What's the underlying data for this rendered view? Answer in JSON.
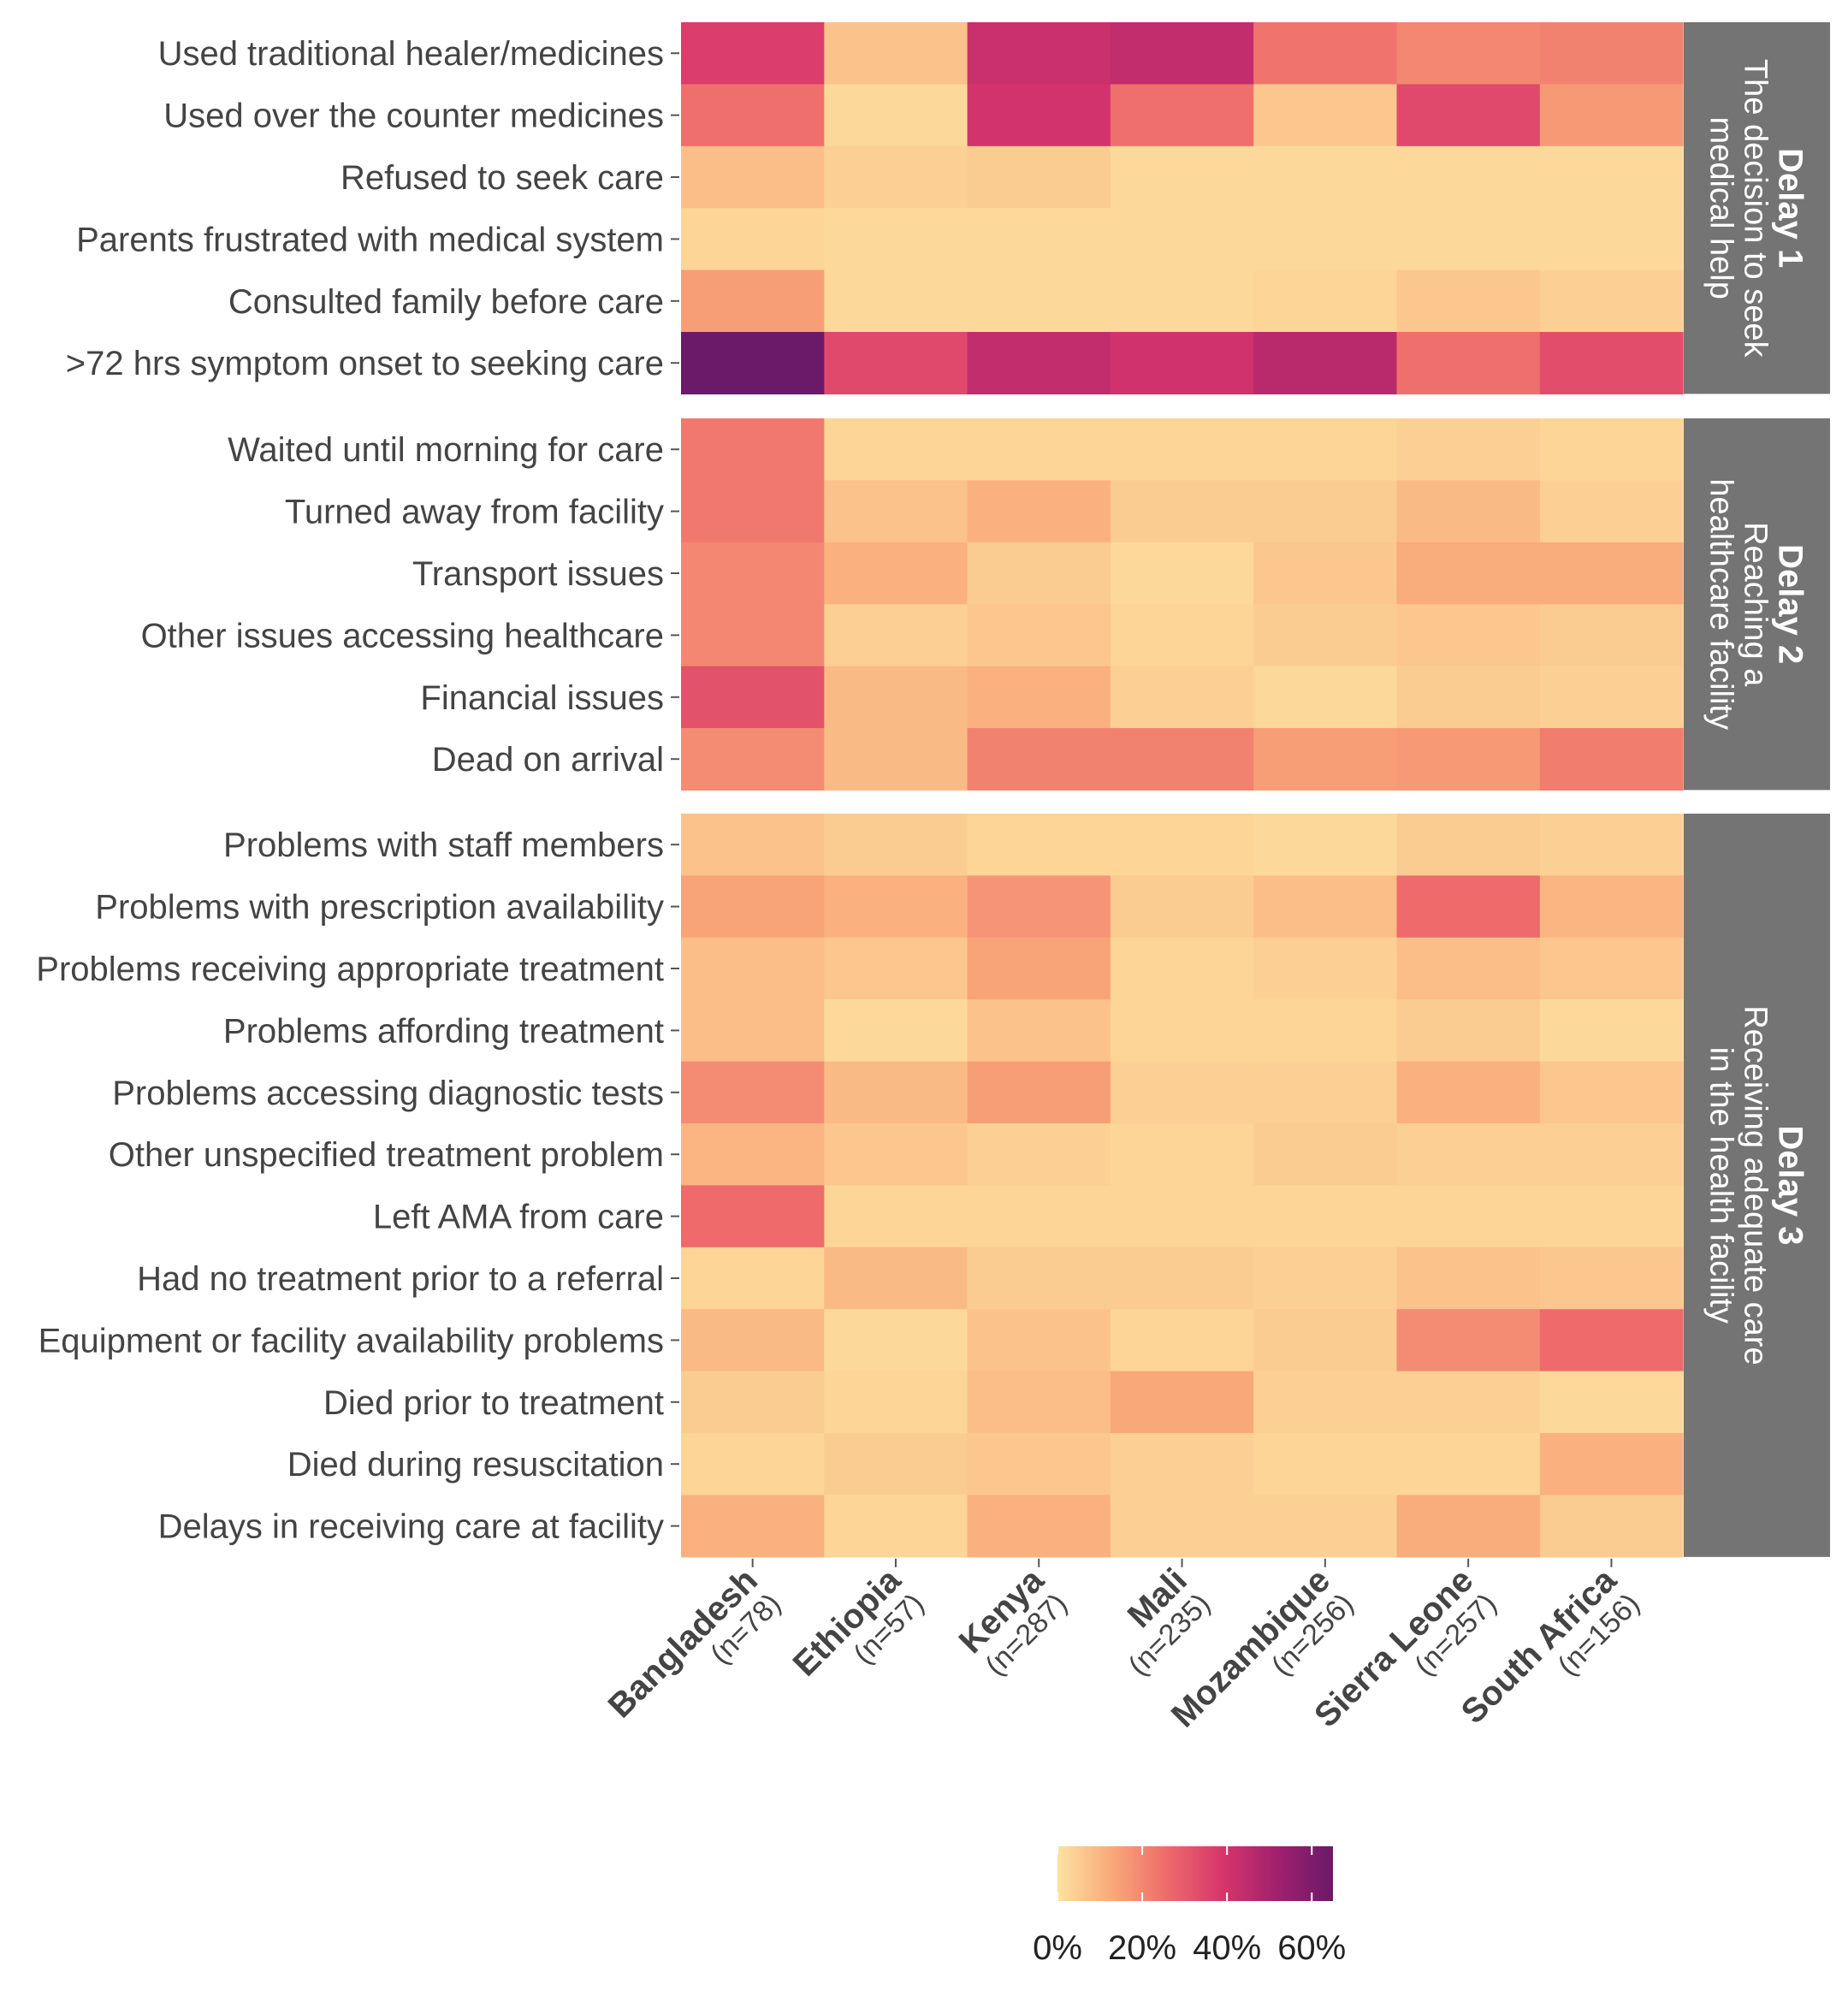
{
  "chart_data": {
    "type": "heatmap",
    "countries": [
      {
        "name": "Bangladesh",
        "n": "(n=78)"
      },
      {
        "name": "Ethiopia",
        "n": "(n=57)"
      },
      {
        "name": "Kenya",
        "n": "(n=287)"
      },
      {
        "name": "Mali",
        "n": "(n=235)"
      },
      {
        "name": "Mozambique",
        "n": "(n=256)"
      },
      {
        "name": "Sierra Leone",
        "n": "(n=257)"
      },
      {
        "name": "South Africa",
        "n": "(n=156)"
      }
    ],
    "panels": [
      {
        "title": "Delay 1",
        "subtitle": [
          "The decision to seek",
          "medical help"
        ],
        "rows": [
          {
            "label": "Used traditional healer/medicines",
            "values": [
              37,
              7,
              42,
              44,
              24,
              20,
              21
            ]
          },
          {
            "label": "Used over the counter medicines",
            "values": [
              25,
              2,
              40,
              25,
              6,
              34,
              16
            ]
          },
          {
            "label": "Refused to seek care",
            "values": [
              8,
              4,
              5,
              2,
              2,
              2,
              2
            ]
          },
          {
            "label": "Parents frustrated with medical system",
            "values": [
              3,
              2,
              2,
              2,
              2,
              2,
              2
            ]
          },
          {
            "label": "Consulted family before care",
            "values": [
              15,
              2,
              2,
              2,
              3,
              6,
              4
            ]
          },
          {
            "label": ">72 hrs symptom onset to seeking care",
            "values": [
              68,
              34,
              44,
              41,
              46,
              25,
              33
            ]
          }
        ]
      },
      {
        "title": "Delay 2",
        "subtitle": [
          "Reaching a",
          "healthcare facility"
        ],
        "rows": [
          {
            "label": "Waited until morning for care",
            "values": [
              23,
              3,
              3,
              3,
              3,
              4,
              3
            ]
          },
          {
            "label": "Turned away from facility",
            "values": [
              23,
              7,
              11,
              5,
              5,
              9,
              4
            ]
          },
          {
            "label": "Transport issues",
            "values": [
              20,
              11,
              5,
              2,
              6,
              12,
              12
            ]
          },
          {
            "label": "Other issues accessing healthcare",
            "values": [
              20,
              4,
              6,
              3,
              5,
              6,
              5
            ]
          },
          {
            "label": "Financial issues",
            "values": [
              32,
              9,
              11,
              4,
              2,
              5,
              4
            ]
          },
          {
            "label": "Dead on arrival",
            "values": [
              19,
              9,
              21,
              21,
              15,
              16,
              22
            ]
          }
        ]
      },
      {
        "title": "Delay 3",
        "subtitle": [
          "Receiving adequate care",
          "in the health facility"
        ],
        "rows": [
          {
            "label": "Problems with staff members",
            "values": [
              7,
              5,
              3,
              3,
              2,
              5,
              4
            ]
          },
          {
            "label": "Problems with prescription availability",
            "values": [
              14,
              11,
              17,
              5,
              8,
              26,
              10
            ]
          },
          {
            "label": "Problems receiving appropriate treatment",
            "values": [
              8,
              6,
              14,
              3,
              4,
              8,
              6
            ]
          },
          {
            "label": "Problems affording treatment",
            "values": [
              8,
              2,
              7,
              3,
              3,
              5,
              2
            ]
          },
          {
            "label": "Problems accessing diagnostic tests",
            "values": [
              19,
              9,
              15,
              4,
              4,
              11,
              6
            ]
          },
          {
            "label": "Other unspecified treatment problem",
            "values": [
              10,
              6,
              4,
              3,
              5,
              4,
              4
            ]
          },
          {
            "label": "Left AMA from care",
            "values": [
              26,
              3,
              3,
              3,
              3,
              3,
              3
            ]
          },
          {
            "label": "Had no treatment prior to a referral",
            "values": [
              3,
              9,
              5,
              5,
              4,
              7,
              6
            ]
          },
          {
            "label": "Equipment or facility availability problems",
            "values": [
              9,
              2,
              7,
              3,
              5,
              19,
              26
            ]
          },
          {
            "label": "Died prior to treatment",
            "values": [
              5,
              3,
              8,
              13,
              4,
              4,
              2
            ]
          },
          {
            "label": "Died during resuscitation",
            "values": [
              3,
              5,
              6,
              4,
              3,
              3,
              11
            ]
          },
          {
            "label": "Delays in receiving care at facility",
            "values": [
              11,
              3,
              11,
              4,
              4,
              12,
              5
            ]
          }
        ]
      }
    ],
    "legend": {
      "ticks": [
        "0%",
        "20%",
        "40%",
        "60%"
      ],
      "tick_values": [
        0,
        20,
        40,
        60
      ],
      "range": [
        0,
        65
      ]
    },
    "color_scale": [
      "#fde2a0",
      "#f9a879",
      "#ee6a6b",
      "#d7356c",
      "#a0206e",
      "#6a1a68"
    ]
  }
}
